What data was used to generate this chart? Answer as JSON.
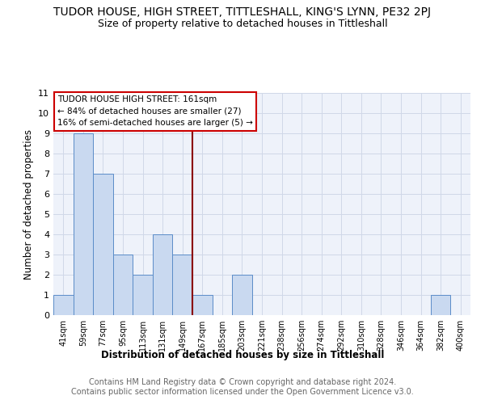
{
  "title": "TUDOR HOUSE, HIGH STREET, TITTLESHALL, KING'S LYNN, PE32 2PJ",
  "subtitle": "Size of property relative to detached houses in Tittleshall",
  "xlabel": "Distribution of detached houses by size in Tittleshall",
  "ylabel": "Number of detached properties",
  "bin_labels": [
    "41sqm",
    "59sqm",
    "77sqm",
    "95sqm",
    "113sqm",
    "131sqm",
    "149sqm",
    "167sqm",
    "185sqm",
    "203sqm",
    "221sqm",
    "238sqm",
    "256sqm",
    "274sqm",
    "292sqm",
    "310sqm",
    "328sqm",
    "346sqm",
    "364sqm",
    "382sqm",
    "400sqm"
  ],
  "bin_values": [
    1,
    9,
    7,
    3,
    2,
    4,
    3,
    1,
    0,
    2,
    0,
    0,
    0,
    0,
    0,
    0,
    0,
    0,
    0,
    1,
    0
  ],
  "bar_color": "#c9d9f0",
  "bar_edge_color": "#5b8cc8",
  "vline_x": 6.5,
  "vline_color": "#8b0000",
  "annotation_text": "TUDOR HOUSE HIGH STREET: 161sqm\n← 84% of detached houses are smaller (27)\n16% of semi-detached houses are larger (5) →",
  "annotation_box_color": "#ffffff",
  "annotation_box_edge_color": "#cc0000",
  "ylim": [
    0,
    11
  ],
  "yticks": [
    0,
    1,
    2,
    3,
    4,
    5,
    6,
    7,
    8,
    9,
    10,
    11
  ],
  "footer_text": "Contains HM Land Registry data © Crown copyright and database right 2024.\nContains public sector information licensed under the Open Government Licence v3.0.",
  "title_fontsize": 10,
  "subtitle_fontsize": 9,
  "xlabel_fontsize": 8.5,
  "ylabel_fontsize": 8.5,
  "footer_fontsize": 7,
  "grid_color": "#d0d8e8",
  "bg_color": "#eef2fa"
}
